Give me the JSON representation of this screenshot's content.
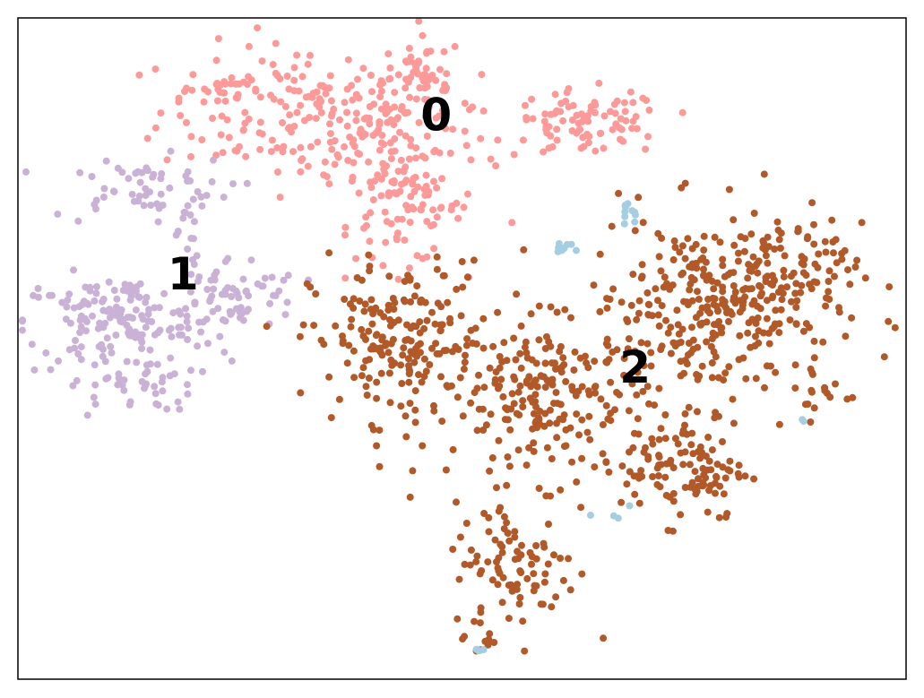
{
  "chart_data": {
    "type": "scatter",
    "title": "",
    "xlabel": "",
    "ylabel": "",
    "xlim": [
      0,
      100
    ],
    "ylim": [
      0,
      100
    ],
    "grid": false,
    "ticks": false,
    "frame": true,
    "cluster_labels": [
      {
        "text": "0",
        "x": 47.1,
        "y": 84.8
      },
      {
        "text": "1",
        "x": 18.6,
        "y": 60.8
      },
      {
        "text": "2",
        "x": 69.5,
        "y": 46.7
      }
    ],
    "series": [
      {
        "color": "#fb9a99",
        "clusters": [
          {
            "cx": 32,
            "cy": 86,
            "sx": 8,
            "sy": 5,
            "n": 170
          },
          {
            "cx": 42,
            "cy": 81,
            "sx": 5,
            "sy": 6,
            "n": 110
          },
          {
            "cx": 44,
            "cy": 71,
            "sx": 3,
            "sy": 4,
            "n": 70
          },
          {
            "cx": 46,
            "cy": 91,
            "sx": 2,
            "sy": 3,
            "n": 40
          },
          {
            "cx": 64,
            "cy": 84,
            "sx": 4.5,
            "sy": 2.5,
            "n": 90
          },
          {
            "cx": 23,
            "cy": 89.5,
            "sx": 1.8,
            "sy": 0.6,
            "n": 14
          }
        ]
      },
      {
        "color": "#cab2d6",
        "clusters": [
          {
            "cx": 11,
            "cy": 54,
            "sx": 5.5,
            "sy": 3.5,
            "n": 150
          },
          {
            "cx": 24,
            "cy": 58,
            "sx": 4,
            "sy": 3,
            "n": 70
          },
          {
            "cx": 14,
            "cy": 74,
            "sx": 5,
            "sy": 2.5,
            "n": 60
          },
          {
            "cx": 13,
            "cy": 44.5,
            "sx": 3.5,
            "sy": 2,
            "n": 40
          },
          {
            "cx": 19,
            "cy": 66,
            "sx": 0.6,
            "sy": 3,
            "n": 12
          }
        ]
      },
      {
        "color": "#b15928",
        "clusters": [
          {
            "cx": 43,
            "cy": 51,
            "sx": 5,
            "sy": 6,
            "n": 200
          },
          {
            "cx": 60,
            "cy": 42,
            "sx": 5.5,
            "sy": 6,
            "n": 210
          },
          {
            "cx": 78,
            "cy": 56,
            "sx": 7,
            "sy": 7,
            "n": 290
          },
          {
            "cx": 85,
            "cy": 61,
            "sx": 5,
            "sy": 4,
            "n": 90
          },
          {
            "cx": 75,
            "cy": 32,
            "sx": 3.5,
            "sy": 4,
            "n": 110
          },
          {
            "cx": 56,
            "cy": 17,
            "sx": 3.5,
            "sy": 5,
            "n": 90
          },
          {
            "cx": 53,
            "cy": 5.5,
            "sx": 0.8,
            "sy": 0.8,
            "n": 8
          },
          {
            "cx": 90.5,
            "cy": 43,
            "sx": 2,
            "sy": 2.5,
            "n": 16
          }
        ]
      },
      {
        "color": "#a6cee3",
        "clusters": [
          {
            "cx": 69,
            "cy": 71,
            "sx": 0.7,
            "sy": 1,
            "n": 10
          },
          {
            "cx": 61.5,
            "cy": 65.5,
            "sx": 0.5,
            "sy": 0.8,
            "n": 10
          },
          {
            "cx": 66,
            "cy": 25,
            "sx": 1.2,
            "sy": 1.2,
            "n": 4
          },
          {
            "cx": 52,
            "cy": 4.5,
            "sx": 0.3,
            "sy": 0.3,
            "n": 4
          },
          {
            "cx": 88.5,
            "cy": 39,
            "sx": 0.2,
            "sy": 0.2,
            "n": 2
          }
        ]
      }
    ]
  }
}
